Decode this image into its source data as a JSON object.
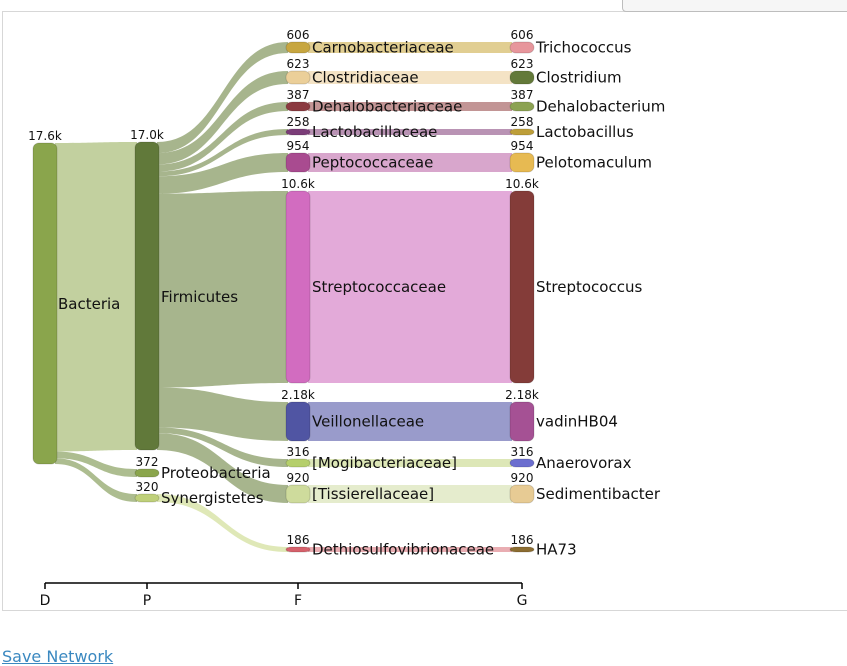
{
  "footer": {
    "save_link": "Save Network"
  },
  "levels": [
    "D",
    "P",
    "F",
    "G"
  ],
  "nodes": {
    "bacteria": {
      "label": "Bacteria",
      "value": "17.6k",
      "color": "#8aa54c"
    },
    "firmicutes": {
      "label": "Firmicutes",
      "value": "17.0k",
      "color": "#61793a"
    },
    "proteobacteria": {
      "label": "Proteobacteria",
      "value": "372",
      "color": "#8aa54c"
    },
    "synergistetes": {
      "label": "Synergistetes",
      "value": "320",
      "color": "#bfd07a"
    },
    "carnobacteriaceae": {
      "label": "Carnobacteriaceae",
      "value": "606",
      "color": "#c7a640"
    },
    "clostridiaceae": {
      "label": "Clostridiaceae",
      "value": "623",
      "color": "#ebcf99"
    },
    "dehalobacteriaceae": {
      "label": "Dehalobacteriaceae",
      "value": "387",
      "color": "#8b3a40"
    },
    "lactobacillaceae": {
      "label": "Lactobacillaceae",
      "value": "258",
      "color": "#7b3d78"
    },
    "peptococcaceae": {
      "label": "Peptococcaceae",
      "value": "954",
      "color": "#a94b90"
    },
    "streptococcaceae": {
      "label": "Streptococcaceae",
      "value": "10.6k",
      "color": "#d26cc0"
    },
    "veillonellaceae": {
      "label": "Veillonellaceae",
      "value": "2.18k",
      "color": "#5055a3"
    },
    "mogibacteriaceae": {
      "label": "[Mogibacteriaceae]",
      "value": "316",
      "color": "#b5cf6b"
    },
    "tissierellaceae": {
      "label": "[Tissierellaceae]",
      "value": "920",
      "color": "#cedb9c"
    },
    "dethiosulfovibrionaceae": {
      "label": "Dethiosulfovibrionaceae",
      "value": "186",
      "color": "#d6616b"
    },
    "trichococcus": {
      "label": "Trichococcus",
      "value": "606",
      "color": "#e7969c"
    },
    "clostridium": {
      "label": "Clostridium",
      "value": "623",
      "color": "#637939"
    },
    "dehalobacterium": {
      "label": "Dehalobacterium",
      "value": "387",
      "color": "#8ca252"
    },
    "lactobacillus": {
      "label": "Lactobacillus",
      "value": "258",
      "color": "#bd9e39"
    },
    "pelotomaculum": {
      "label": "Pelotomaculum",
      "value": "954",
      "color": "#e7ba52"
    },
    "streptococcus": {
      "label": "Streptococcus",
      "value": "10.6k",
      "color": "#843c39"
    },
    "vadinhb04": {
      "label": "vadinHB04",
      "value": "2.18k",
      "color": "#a55194"
    },
    "anaerovorax": {
      "label": "Anaerovorax",
      "value": "316",
      "color": "#6b6ecf"
    },
    "sedimentibacter": {
      "label": "Sedimentibacter",
      "value": "920",
      "color": "#e7cb94"
    },
    "ha73": {
      "label": "HA73",
      "value": "186",
      "color": "#8c6d31"
    }
  },
  "links": [
    {
      "source": "bacteria",
      "target": "firmicutes",
      "value": 17000,
      "color": "#bfcd9a"
    },
    {
      "source": "bacteria",
      "target": "proteobacteria",
      "value": 372,
      "color": "#a9b98a"
    },
    {
      "source": "bacteria",
      "target": "synergistetes",
      "value": 320,
      "color": "#a9b98a"
    },
    {
      "source": "firmicutes",
      "target": "carnobacteriaceae",
      "value": 606,
      "color": "#a2b187"
    },
    {
      "source": "firmicutes",
      "target": "clostridiaceae",
      "value": 623,
      "color": "#a2b187"
    },
    {
      "source": "firmicutes",
      "target": "dehalobacteriaceae",
      "value": 387,
      "color": "#a2b187"
    },
    {
      "source": "firmicutes",
      "target": "lactobacillaceae",
      "value": 258,
      "color": "#a2b187"
    },
    {
      "source": "firmicutes",
      "target": "peptococcaceae",
      "value": 954,
      "color": "#a2b187"
    },
    {
      "source": "firmicutes",
      "target": "streptococcaceae",
      "value": 10600,
      "color": "#a2b187"
    },
    {
      "source": "firmicutes",
      "target": "veillonellaceae",
      "value": 2180,
      "color": "#a2b187"
    },
    {
      "source": "firmicutes",
      "target": "mogibacteriaceae",
      "value": 316,
      "color": "#a2b187"
    },
    {
      "source": "firmicutes",
      "target": "tissierellaceae",
      "value": 920,
      "color": "#a2b187"
    },
    {
      "source": "synergistetes",
      "target": "dethiosulfovibrionaceae",
      "value": 186,
      "color": "#dde7b3"
    },
    {
      "source": "carnobacteriaceae",
      "target": "trichococcus",
      "value": 606,
      "color": "#dfcb8c"
    },
    {
      "source": "clostridiaceae",
      "target": "clostridium",
      "value": 623,
      "color": "#f3e1c2"
    },
    {
      "source": "dehalobacteriaceae",
      "target": "dehalobacterium",
      "value": 387,
      "color": "#bf8f8f"
    },
    {
      "source": "lactobacillaceae",
      "target": "lactobacillus",
      "value": 258,
      "color": "#b58db0"
    },
    {
      "source": "peptococcaceae",
      "target": "pelotomaculum",
      "value": 954,
      "color": "#d6a1c9"
    },
    {
      "source": "streptococcaceae",
      "target": "streptococcus",
      "value": 10600,
      "color": "#e2a5d7"
    },
    {
      "source": "veillonellaceae",
      "target": "vadinhb04",
      "value": 2180,
      "color": "#9496c8"
    },
    {
      "source": "mogibacteriaceae",
      "target": "anaerovorax",
      "value": 316,
      "color": "#dbe6b3"
    },
    {
      "source": "tissierellaceae",
      "target": "sedimentibacter",
      "value": 920,
      "color": "#e4ebca"
    },
    {
      "source": "dethiosulfovibrionaceae",
      "target": "ha73",
      "value": 186,
      "color": "#e8a9ae"
    }
  ]
}
